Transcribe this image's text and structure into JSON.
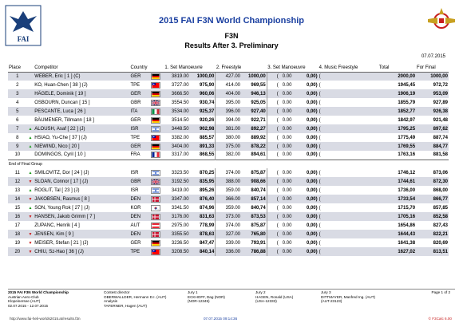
{
  "header": {
    "fai_text": "FAI",
    "title": "2015 FAI F3N World Championship",
    "class_name": "F3N",
    "subtitle": "Results After 3. Preliminary",
    "date": "07.07.2015"
  },
  "columns": {
    "place": "Place",
    "competitor": "Competitor",
    "country": "Country",
    "set1": "1. Set Manoeuvre",
    "freestyle2": "2. Freestyle",
    "set3": "3. Set Manoeuvre",
    "music4": "4. Music Freestyle",
    "total": "Total",
    "final": "For Final"
  },
  "separator_label": "End of Final Group",
  "rows": [
    {
      "place": "1",
      "trend": "",
      "name": "WEBER, Eric [ 1 ] (C)",
      "country": "GER",
      "s1": "3819.00",
      "s1n": "1000,00",
      "f2": "427.00",
      "f2n": "1000,00",
      "s3": "0.00",
      "s3n": "0,00",
      "total": "2000,00",
      "final": "1000,00"
    },
    {
      "place": "2",
      "trend": "",
      "name": "KO, Huan-Chen [ 38 ] (J)",
      "country": "TPE",
      "s1": "3727.00",
      "s1n": "975,90",
      "f2": "414.00",
      "f2n": "969,55",
      "s3": "0.00",
      "s3n": "0,00",
      "total": "1945,45",
      "final": "972,72"
    },
    {
      "place": "3",
      "trend": "",
      "name": "HÄGELE, Dominik [ 19 ]",
      "country": "GER",
      "s1": "3666.50",
      "s1n": "960,06",
      "f2": "404.00",
      "f2n": "946,13",
      "s3": "0.00",
      "s3n": "0,00",
      "total": "1906,19",
      "final": "953,09"
    },
    {
      "place": "4",
      "trend": "",
      "name": "OSBOURN, Duncan [ 15 ]",
      "country": "GBR",
      "s1": "3554.50",
      "s1n": "930,74",
      "f2": "395.00",
      "f2n": "925,05",
      "s3": "0.00",
      "s3n": "0,00",
      "total": "1855,79",
      "final": "927,89"
    },
    {
      "place": "5",
      "trend": "",
      "name": "PESCANTE, Luca [ 26 ]",
      "country": "ITA",
      "s1": "3534.00",
      "s1n": "925,37",
      "f2": "396.00",
      "f2n": "927,40",
      "s3": "0.00",
      "s3n": "0,00",
      "total": "1852,77",
      "final": "926,38"
    },
    {
      "place": "6",
      "trend": "",
      "name": "BÄUMENER, Tillmann [ 18 ]",
      "country": "GER",
      "s1": "3514.50",
      "s1n": "920,26",
      "f2": "394.00",
      "f2n": "922,71",
      "s3": "0.00",
      "s3n": "0,00",
      "total": "1842,97",
      "final": "921,48"
    },
    {
      "place": "7",
      "trend": "up",
      "name": "ALOUSH, Asaf [ 22 ] (J)",
      "country": "ISR",
      "s1": "3448.50",
      "s1n": "902,98",
      "f2": "381.00",
      "f2n": "892,27",
      "s3": "0.00",
      "s3n": "0,00",
      "total": "1795,25",
      "final": "897,62"
    },
    {
      "place": "8",
      "trend": "up",
      "name": "HSIAO, Yu-Che [ 37 ] (J)",
      "country": "TPE",
      "s1": "3382.00",
      "s1n": "885,57",
      "f2": "380.00",
      "f2n": "889,92",
      "s3": "0.00",
      "s3n": "0,00",
      "total": "1775,49",
      "final": "887,74"
    },
    {
      "place": "9",
      "trend": "up",
      "name": "NIEWIND, Nico [ 20 ]",
      "country": "GER",
      "s1": "3404.00",
      "s1n": "891,33",
      "f2": "375.00",
      "f2n": "878,22",
      "s3": "0.00",
      "s3n": "0,00",
      "total": "1769,55",
      "final": "884,77"
    },
    {
      "place": "10",
      "trend": "",
      "name": "DOMINGOS, Cyril [ 10 ]",
      "country": "FRA",
      "s1": "3317.00",
      "s1n": "868,55",
      "f2": "382.00",
      "f2n": "894,61",
      "s3": "0.00",
      "s3n": "0,00",
      "total": "1763,16",
      "final": "881,58"
    },
    {
      "place": "11",
      "trend": "up",
      "name": "SMILOVITZ, Dor [ 24 ] (J)",
      "country": "ISR",
      "s1": "3323.50",
      "s1n": "870,25",
      "f2": "374.00",
      "f2n": "875,87",
      "s3": "0.00",
      "s3n": "0,00",
      "total": "1746,12",
      "final": "873,06"
    },
    {
      "place": "12",
      "trend": "down",
      "name": "SLOAN, Connor [ 17 ] (J)",
      "country": "GBR",
      "s1": "3192.50",
      "s1n": "835,95",
      "f2": "388.00",
      "f2n": "908,66",
      "s3": "0.00",
      "s3n": "0,00",
      "total": "1744,61",
      "final": "872,30"
    },
    {
      "place": "13",
      "trend": "up",
      "name": "ROGLIT, Tal [ 23 ] (J)",
      "country": "ISR",
      "s1": "3419.00",
      "s1n": "895,26",
      "f2": "359.00",
      "f2n": "840,74",
      "s3": "0.00",
      "s3n": "0,00",
      "total": "1736,00",
      "final": "868,00"
    },
    {
      "place": "14",
      "trend": "down",
      "name": "JAKOBSEN, Rasmus [ 8 ]",
      "country": "DEN",
      "s1": "3347.00",
      "s1n": "876,40",
      "f2": "366.00",
      "f2n": "857,14",
      "s3": "0.00",
      "s3n": "0,00",
      "total": "1733,54",
      "final": "866,77"
    },
    {
      "place": "15",
      "trend": "up",
      "name": "SON, Young Rok [ 27 ] (J)",
      "country": "KOR",
      "s1": "3341.50",
      "s1n": "874,96",
      "f2": "359.00",
      "f2n": "840,74",
      "s3": "0.00",
      "s3n": "0,00",
      "total": "1715,70",
      "final": "857,85"
    },
    {
      "place": "16",
      "trend": "down",
      "name": "HANSEN, Jakob Grimm [ 7 ]",
      "country": "DEN",
      "s1": "3176.00",
      "s1n": "831,63",
      "f2": "373.00",
      "f2n": "873,53",
      "s3": "0.00",
      "s3n": "0,00",
      "total": "1705,16",
      "final": "852,58"
    },
    {
      "place": "17",
      "trend": "",
      "name": "ZUPANC, Henrik [ 4 ]",
      "country": "AUT",
      "s1": "2975.00",
      "s1n": "778,99",
      "f2": "374.00",
      "f2n": "875,87",
      "s3": "0.00",
      "s3n": "0,00",
      "total": "1654,86",
      "final": "827,43"
    },
    {
      "place": "18",
      "trend": "down",
      "name": "JENSEN, Kim [ 9 ]",
      "country": "DEN",
      "s1": "3355.50",
      "s1n": "878,63",
      "f2": "327.00",
      "f2n": "765,80",
      "s3": "0.00",
      "s3n": "0,00",
      "total": "1644,43",
      "final": "822,21"
    },
    {
      "place": "19",
      "trend": "down",
      "name": "MEISER, Stefan [ 21 ] (J)",
      "country": "GER",
      "s1": "3236.50",
      "s1n": "847,47",
      "f2": "339.00",
      "f2n": "793,91",
      "s3": "0.00",
      "s3n": "0,00",
      "total": "1641,38",
      "final": "820,69"
    },
    {
      "place": "20",
      "trend": "down",
      "name": "CHIU, Sz-Hao [ 36 ] (J)",
      "country": "TPE",
      "s1": "3208.50",
      "s1n": "840,14",
      "f2": "336.00",
      "f2n": "786,88",
      "s3": "0.00",
      "s3n": "0,00",
      "total": "1627,02",
      "final": "813,51"
    }
  ],
  "footer": {
    "event_l1": "2015 FAI F3N World Championship",
    "event_l2": "Austrian Aero-Club",
    "event_l3": "Klopeinersee (AUT)",
    "event_l4": "02.07.2015 - 12.07.2015",
    "cd_label": "Contest director",
    "cd_name": "OBERWALLDER, Hermann D.I. (AUT)",
    "an_label": "Analysis",
    "an_name": "TAFERNER, Hagen (AUT)",
    "j1_label": "Jury 1",
    "j1_name": "ECKHOFF, Dag (NOR)",
    "j1_id": "(NOR-12345)",
    "j2_label": "Jury 2",
    "j2_name": "HAGEN, Ronald (USA)",
    "j2_id": "(USA-12333)",
    "j3_label": "Jury 3",
    "j3_name": "DITTMAYER, Manfred Ing. (AUT)",
    "j3_id": "(AUT-23123)",
    "page": "Page 1 of 2",
    "url": "http://www.fai-heli-worlds2015.at/results.f3n",
    "timestamp": "07.07.2015 09:14:36",
    "software": "© F3Calc 6.00"
  }
}
